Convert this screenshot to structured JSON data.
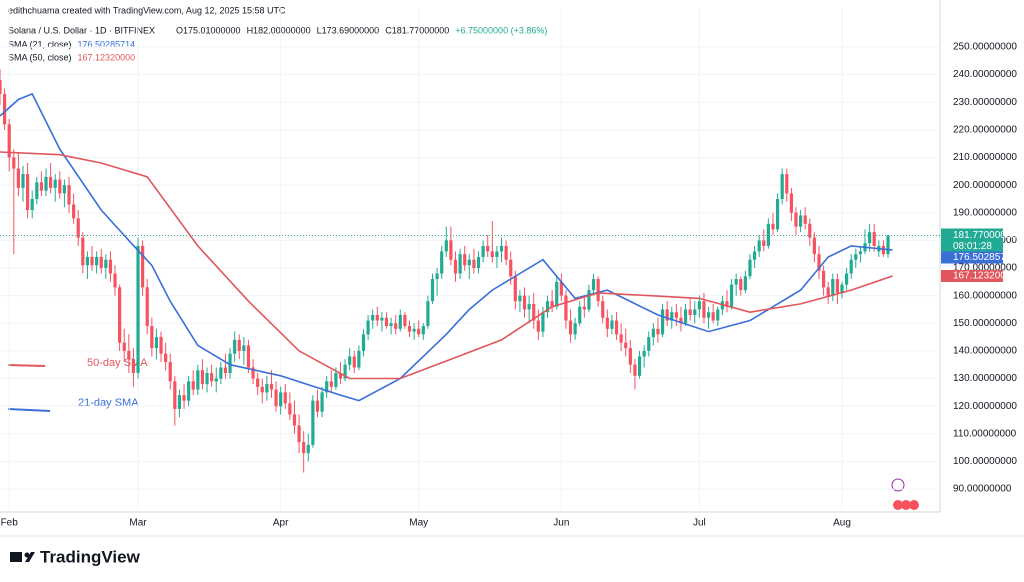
{
  "header": {
    "credit": "edithchuama created with TradingView.com, Aug 12, 2025 15:58 UTC",
    "symbol": "Solana / U.S. Dollar · 1D · BITFINEX",
    "ohlc_labels": [
      "O175.01000000",
      "H182.00000000",
      "L173.69000000",
      "C181.77000000",
      "+6.75000000 (+3.86%)"
    ]
  },
  "footer": {
    "brand": "TradingView"
  },
  "chart_data": {
    "type": "candlestick",
    "xlim": [
      -2,
      202.3
    ],
    "ylim": [
      81.7,
      264.1
    ],
    "xticks": [
      {
        "value": 0,
        "label": "Feb"
      },
      {
        "value": 28,
        "label": "Mar"
      },
      {
        "value": 59,
        "label": "Apr"
      },
      {
        "value": 89,
        "label": "May"
      },
      {
        "value": 120,
        "label": "Jun"
      },
      {
        "value": 150,
        "label": "Jul"
      },
      {
        "value": 181,
        "label": "Aug"
      }
    ],
    "yticks": [
      {
        "value": 90,
        "label": "90.00000000"
      },
      {
        "value": 100,
        "label": "100.00000000"
      },
      {
        "value": 110,
        "label": "110.00000000"
      },
      {
        "value": 120,
        "label": "120.00000000"
      },
      {
        "value": 130,
        "label": "130.00000000"
      },
      {
        "value": 140,
        "label": "140.00000000"
      },
      {
        "value": 150,
        "label": "150.00000000"
      },
      {
        "value": 160,
        "label": "160.00000000"
      },
      {
        "value": 170,
        "label": "170.00000000"
      },
      {
        "value": 180,
        "label": "180.00000000"
      },
      {
        "value": 190,
        "label": "190.00000000"
      },
      {
        "value": 200,
        "label": "200.00000000"
      },
      {
        "value": 210,
        "label": "210.00000000"
      },
      {
        "value": 220,
        "label": "220.00000000"
      },
      {
        "value": 230,
        "label": "230.00000000"
      },
      {
        "value": 240,
        "label": "240.00000000"
      },
      {
        "value": 250,
        "label": "250.00000000"
      }
    ],
    "grid": true,
    "up_color": "#22ab94",
    "down_color": "#f7525f",
    "candle_start": -2,
    "candles": [
      [
        238,
        242,
        229,
        233
      ],
      [
        233,
        235,
        220,
        222
      ],
      [
        222,
        224,
        205,
        210
      ],
      [
        210,
        213,
        175,
        206
      ],
      [
        206,
        212,
        196,
        199
      ],
      [
        199,
        207,
        194,
        204
      ],
      [
        204,
        208,
        188,
        191
      ],
      [
        191,
        198,
        188,
        195
      ],
      [
        195,
        203,
        193,
        201
      ],
      [
        201,
        205,
        196,
        198
      ],
      [
        198,
        206,
        196,
        203
      ],
      [
        203,
        208,
        197,
        199
      ],
      [
        199,
        204,
        194,
        202
      ],
      [
        202,
        205,
        195,
        197
      ],
      [
        197,
        202,
        192,
        200
      ],
      [
        200,
        203,
        190,
        193
      ],
      [
        193,
        197,
        186,
        188
      ],
      [
        188,
        191,
        178,
        181
      ],
      [
        181,
        183,
        168,
        171
      ],
      [
        171,
        176,
        166,
        174
      ],
      [
        174,
        178,
        169,
        171
      ],
      [
        171,
        176,
        168,
        174
      ],
      [
        174,
        177,
        168,
        170
      ],
      [
        170,
        175,
        166,
        173
      ],
      [
        173,
        176,
        165,
        168
      ],
      [
        168,
        171,
        160,
        163
      ],
      [
        163,
        164,
        140,
        143
      ],
      [
        143,
        148,
        136,
        140
      ],
      [
        140,
        146,
        132,
        137
      ],
      [
        137,
        141,
        127,
        132
      ],
      [
        132,
        181,
        130,
        178
      ],
      [
        178,
        180,
        160,
        163
      ],
      [
        163,
        166,
        146,
        149
      ],
      [
        149,
        152,
        138,
        141
      ],
      [
        141,
        148,
        137,
        145
      ],
      [
        145,
        147,
        136,
        139
      ],
      [
        139,
        143,
        133,
        136
      ],
      [
        136,
        139,
        126,
        129
      ],
      [
        129,
        131,
        113,
        119
      ],
      [
        119,
        126,
        116,
        124
      ],
      [
        124,
        128,
        119,
        122
      ],
      [
        122,
        131,
        120,
        129
      ],
      [
        129,
        133,
        124,
        126
      ],
      [
        126,
        135,
        124,
        133
      ],
      [
        133,
        137,
        126,
        128
      ],
      [
        128,
        134,
        125,
        132
      ],
      [
        132,
        135,
        127,
        129
      ],
      [
        129,
        134,
        125,
        130
      ],
      [
        130,
        136,
        128,
        134
      ],
      [
        134,
        139,
        130,
        132
      ],
      [
        132,
        141,
        130,
        139
      ],
      [
        139,
        147,
        136,
        144
      ],
      [
        144,
        146,
        137,
        140
      ],
      [
        140,
        145,
        135,
        142
      ],
      [
        142,
        144,
        132,
        134
      ],
      [
        134,
        137,
        128,
        130
      ],
      [
        130,
        132,
        124,
        127
      ],
      [
        127,
        130,
        121,
        125
      ],
      [
        125,
        131,
        122,
        128
      ],
      [
        128,
        133,
        123,
        126
      ],
      [
        126,
        129,
        118,
        120
      ],
      [
        120,
        127,
        117,
        125
      ],
      [
        125,
        128,
        119,
        121
      ],
      [
        121,
        125,
        115,
        117
      ],
      [
        117,
        122,
        110,
        113
      ],
      [
        113,
        117,
        103,
        107
      ],
      [
        107,
        111,
        96,
        103
      ],
      [
        103,
        110,
        100,
        106
      ],
      [
        106,
        124,
        105,
        122
      ],
      [
        122,
        126,
        116,
        118
      ],
      [
        118,
        127,
        116,
        125
      ],
      [
        125,
        131,
        123,
        129
      ],
      [
        129,
        133,
        125,
        127
      ],
      [
        127,
        134,
        126,
        132
      ],
      [
        132,
        136,
        128,
        130
      ],
      [
        130,
        137,
        129,
        135
      ],
      [
        135,
        141,
        133,
        138
      ],
      [
        138,
        140,
        132,
        134
      ],
      [
        134,
        142,
        133,
        140
      ],
      [
        140,
        148,
        138,
        146
      ],
      [
        146,
        153,
        144,
        151
      ],
      [
        151,
        155,
        148,
        153
      ],
      [
        153,
        156,
        149,
        151
      ],
      [
        151,
        154,
        147,
        152
      ],
      [
        152,
        154,
        148,
        149
      ],
      [
        149,
        152,
        146,
        150
      ],
      [
        150,
        153,
        146,
        148
      ],
      [
        148,
        155,
        147,
        153
      ],
      [
        153,
        154,
        148,
        149
      ],
      [
        149,
        151,
        145,
        147
      ],
      [
        147,
        150,
        144,
        148
      ],
      [
        148,
        151,
        145,
        146
      ],
      [
        146,
        150,
        144,
        149
      ],
      [
        149,
        160,
        148,
        158
      ],
      [
        158,
        168,
        157,
        166
      ],
      [
        166,
        170,
        160,
        168
      ],
      [
        168,
        178,
        166,
        176
      ],
      [
        176,
        185,
        174,
        180
      ],
      [
        180,
        185,
        171,
        173
      ],
      [
        173,
        176,
        165,
        168
      ],
      [
        168,
        177,
        166,
        175
      ],
      [
        175,
        178,
        169,
        171
      ],
      [
        171,
        175,
        166,
        173
      ],
      [
        173,
        177,
        168,
        170
      ],
      [
        170,
        176,
        168,
        174
      ],
      [
        174,
        180,
        172,
        178
      ],
      [
        178,
        182,
        174,
        176
      ],
      [
        176,
        187,
        172,
        174
      ],
      [
        174,
        178,
        170,
        176
      ],
      [
        176,
        181,
        172,
        178
      ],
      [
        178,
        180,
        171,
        173
      ],
      [
        173,
        176,
        164,
        167
      ],
      [
        167,
        169,
        155,
        158
      ],
      [
        158,
        162,
        154,
        160
      ],
      [
        160,
        163,
        152,
        155
      ],
      [
        155,
        160,
        150,
        157
      ],
      [
        157,
        161,
        148,
        151
      ],
      [
        151,
        155,
        144,
        147
      ],
      [
        147,
        156,
        145,
        154
      ],
      [
        154,
        160,
        152,
        158
      ],
      [
        158,
        162,
        154,
        156
      ],
      [
        156,
        167,
        155,
        165
      ],
      [
        165,
        168,
        158,
        160
      ],
      [
        160,
        162,
        148,
        151
      ],
      [
        151,
        155,
        143,
        146
      ],
      [
        146,
        152,
        144,
        150
      ],
      [
        150,
        158,
        149,
        156
      ],
      [
        156,
        160,
        152,
        155
      ],
      [
        155,
        164,
        154,
        162
      ],
      [
        162,
        168,
        160,
        166
      ],
      [
        166,
        167,
        156,
        158
      ],
      [
        158,
        160,
        150,
        152
      ],
      [
        152,
        155,
        145,
        148
      ],
      [
        148,
        153,
        146,
        151
      ],
      [
        151,
        154,
        144,
        146
      ],
      [
        146,
        150,
        140,
        143
      ],
      [
        143,
        148,
        138,
        141
      ],
      [
        141,
        144,
        132,
        135
      ],
      [
        135,
        137,
        126,
        131
      ],
      [
        131,
        140,
        130,
        138
      ],
      [
        138,
        142,
        134,
        140
      ],
      [
        140,
        147,
        138,
        145
      ],
      [
        145,
        150,
        142,
        148
      ],
      [
        148,
        152,
        143,
        146
      ],
      [
        146,
        157,
        145,
        155
      ],
      [
        155,
        158,
        149,
        151
      ],
      [
        151,
        156,
        148,
        154
      ],
      [
        154,
        157,
        149,
        152
      ],
      [
        152,
        156,
        147,
        150
      ],
      [
        150,
        157,
        149,
        155
      ],
      [
        155,
        159,
        151,
        153
      ],
      [
        153,
        158,
        150,
        155
      ],
      [
        155,
        160,
        152,
        158
      ],
      [
        158,
        161,
        150,
        152
      ],
      [
        152,
        156,
        148,
        154
      ],
      [
        154,
        157,
        150,
        151
      ],
      [
        151,
        156,
        149,
        155
      ],
      [
        155,
        160,
        153,
        158
      ],
      [
        158,
        162,
        154,
        156
      ],
      [
        156,
        166,
        155,
        164
      ],
      [
        164,
        168,
        160,
        166
      ],
      [
        166,
        167,
        160,
        162
      ],
      [
        162,
        169,
        161,
        167
      ],
      [
        167,
        175,
        166,
        173
      ],
      [
        173,
        178,
        170,
        176
      ],
      [
        176,
        182,
        174,
        180
      ],
      [
        180,
        184,
        176,
        178
      ],
      [
        178,
        188,
        177,
        186
      ],
      [
        186,
        190,
        182,
        184
      ],
      [
        184,
        197,
        183,
        195
      ],
      [
        195,
        206,
        193,
        204
      ],
      [
        204,
        206,
        194,
        197
      ],
      [
        197,
        199,
        187,
        190
      ],
      [
        190,
        192,
        182,
        185
      ],
      [
        185,
        191,
        183,
        189
      ],
      [
        189,
        192,
        184,
        186
      ],
      [
        186,
        188,
        178,
        181
      ],
      [
        181,
        183,
        172,
        175
      ],
      [
        175,
        178,
        166,
        169
      ],
      [
        169,
        171,
        160,
        163
      ],
      [
        163,
        165,
        157,
        160
      ],
      [
        160,
        168,
        158,
        166
      ],
      [
        166,
        168,
        157,
        161
      ],
      [
        161,
        165,
        159,
        164
      ],
      [
        164,
        170,
        162,
        168
      ],
      [
        168,
        175,
        166,
        173
      ],
      [
        173,
        177,
        170,
        175
      ],
      [
        175,
        178,
        172,
        176
      ],
      [
        176,
        184,
        175,
        179
      ],
      [
        179,
        186,
        176,
        183
      ],
      [
        183,
        186,
        176,
        178
      ],
      [
        176,
        180,
        174,
        178
      ],
      [
        178,
        180,
        174,
        175.01
      ],
      [
        175.01,
        182,
        173.69,
        181.77
      ]
    ],
    "last_price": {
      "value": 181.77,
      "label": "181.77000000"
    },
    "countdown": "08:01:28",
    "series": [
      {
        "name": "SMA (21, close)",
        "color": "#3a6fd8",
        "value_label": {
          "value": 176.50285714,
          "label": "176.50285714"
        },
        "x": [
          -2,
          2,
          5,
          11,
          20,
          26,
          31,
          35,
          41,
          48,
          59,
          72,
          76,
          85,
          90,
          95,
          100,
          105,
          111,
          116,
          123,
          130,
          141,
          152,
          161,
          172,
          178,
          183,
          192
        ],
        "values": [
          225,
          231,
          233,
          213,
          191,
          180,
          171,
          158,
          142,
          135,
          131,
          124,
          122,
          130,
          138,
          146,
          155,
          162,
          168,
          173,
          159,
          162,
          153,
          147,
          151,
          162,
          174,
          178,
          176.50285714
        ]
      },
      {
        "name": "SMA (50, close)",
        "color": "#e0565c",
        "value_label": {
          "value": 167.1232,
          "label": "167.12320000"
        },
        "x": [
          -2,
          11,
          20,
          30,
          41,
          52,
          63,
          74,
          85,
          96,
          107,
          118,
          128,
          139,
          150,
          161,
          172,
          183,
          192
        ],
        "values": [
          212,
          211,
          208,
          203,
          178,
          158,
          140,
          130,
          130,
          137,
          144,
          156,
          161,
          160,
          159,
          154,
          157,
          162,
          167.1232
        ]
      }
    ],
    "annotations": [
      "50-day SMA",
      "21-day SMA"
    ]
  }
}
